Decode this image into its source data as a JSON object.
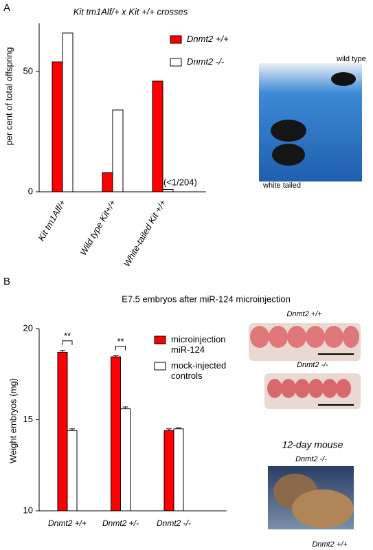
{
  "chart_data": [
    {
      "type": "bar",
      "panel": "A",
      "title": "Kit tm1Alf/+ x Kit +/+ crosses",
      "y_label": "per cent of total offspring",
      "categories": [
        "Kit tm1Alf/+",
        "Wild type Kit+/+",
        "White-tailed Kit +/+"
      ],
      "series": [
        {
          "name": "Dnmt2 +/+",
          "color": "#ff0000",
          "values": [
            54,
            8,
            46
          ]
        },
        {
          "name": "Dnmt2 -/-",
          "color": "#ffffff",
          "values": [
            66,
            34,
            1
          ]
        }
      ],
      "ylim": [
        0,
        70
      ],
      "yticks": [
        0,
        50
      ],
      "annotation": "(<1/204)",
      "image_labels": [
        "wild type",
        "white tailed"
      ]
    },
    {
      "type": "bar",
      "panel": "B",
      "title": "E7.5 embryos after miR-124 microinjection",
      "y_label": "Weight embryos (mg)",
      "categories": [
        "Dnmt2 +/+",
        "Dnmt2 +/-",
        "Dnmt2 -/-"
      ],
      "series": [
        {
          "name": "microinjection miR-124",
          "color": "#ff0000",
          "values": [
            18.7,
            18.45,
            14.4
          ],
          "errors": [
            0.1,
            0.06,
            0.1
          ]
        },
        {
          "name": "mock-injected controls",
          "color": "#ffffff",
          "values": [
            14.4,
            15.6,
            14.5
          ],
          "errors": [
            0.1,
            0.1,
            0.06
          ]
        }
      ],
      "ylim": [
        10,
        20
      ],
      "yticks": [
        10,
        15,
        20
      ],
      "significance": [
        "**",
        "**",
        null
      ],
      "image_labels": [
        "Dnmt2 +/+",
        "Dnmt2 -/-",
        "12-day mouse",
        "Dnmt2 -/-",
        "Dnmt2 +/+"
      ]
    }
  ]
}
